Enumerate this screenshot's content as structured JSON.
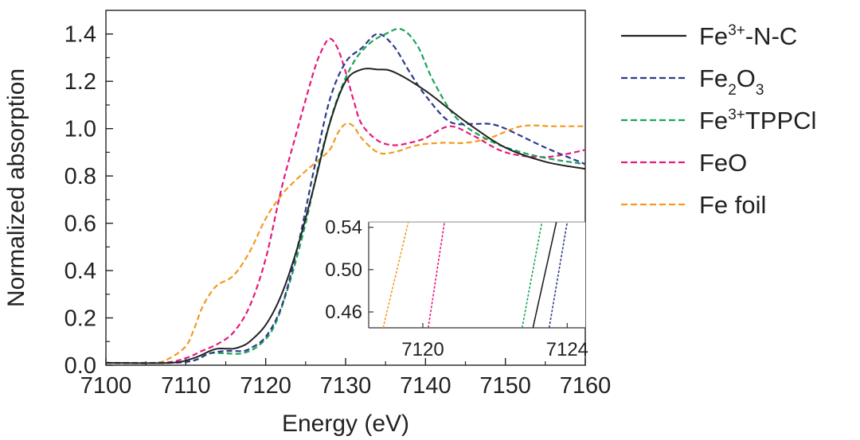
{
  "chart_data": {
    "type": "line",
    "title": "",
    "xlabel": "Energy (eV)",
    "ylabel": "Normalized absorption",
    "xlim": [
      7100,
      7160
    ],
    "ylim": [
      0.0,
      1.5
    ],
    "xticks": [
      7100,
      7110,
      7120,
      7130,
      7140,
      7150,
      7160
    ],
    "xtick_labels": [
      "7100",
      "7110",
      "7120",
      "7130",
      "7140",
      "7150",
      "7160"
    ],
    "yticks": [
      0.0,
      0.2,
      0.4,
      0.6,
      0.8,
      1.0,
      1.2,
      1.4
    ],
    "ytick_labels": [
      "0.0",
      "0.2",
      "0.4",
      "0.6",
      "0.8",
      "1.0",
      "1.2",
      "1.4"
    ],
    "legend_position": "right-outside",
    "series": [
      {
        "name": "Fe3+-N-C",
        "label_parts": [
          "Fe",
          "3+",
          "-N-C"
        ],
        "label_format": "sup",
        "color": "#222222",
        "dash": "solid",
        "x": [
          7100,
          7108,
          7111,
          7113,
          7114,
          7115,
          7116,
          7117,
          7118,
          7120,
          7122,
          7124,
          7126,
          7128,
          7130,
          7132,
          7134,
          7136,
          7140,
          7145,
          7150,
          7155,
          7160
        ],
        "y": [
          0.01,
          0.01,
          0.03,
          0.06,
          0.07,
          0.07,
          0.07,
          0.08,
          0.1,
          0.17,
          0.3,
          0.5,
          0.75,
          1.02,
          1.2,
          1.25,
          1.25,
          1.24,
          1.16,
          1.03,
          0.92,
          0.86,
          0.83
        ]
      },
      {
        "name": "Fe2O3",
        "label_parts": [
          "Fe",
          "2",
          "O",
          "3"
        ],
        "label_format": "sub",
        "color": "#2e3a8c",
        "dash": "dashed",
        "x": [
          7100,
          7108,
          7111,
          7113,
          7115,
          7117,
          7118,
          7120,
          7122,
          7124,
          7126,
          7128,
          7130,
          7132,
          7134,
          7136,
          7138,
          7140,
          7143,
          7146,
          7148,
          7150,
          7155,
          7160
        ],
        "y": [
          0.01,
          0.01,
          0.02,
          0.05,
          0.06,
          0.06,
          0.07,
          0.12,
          0.25,
          0.5,
          0.82,
          1.12,
          1.28,
          1.34,
          1.4,
          1.35,
          1.24,
          1.14,
          1.03,
          1.02,
          1.02,
          1.0,
          0.92,
          0.85
        ]
      },
      {
        "name": "Fe3+TPPCl",
        "label_parts": [
          "Fe",
          "3+",
          "TPPCl"
        ],
        "label_format": "sup",
        "color": "#1aa35a",
        "dash": "dashed",
        "x": [
          7100,
          7108,
          7111,
          7113,
          7115,
          7117,
          7119,
          7121,
          7123,
          7125,
          7127,
          7129,
          7131,
          7133,
          7135,
          7137,
          7139,
          7141,
          7144,
          7148,
          7152,
          7156,
          7160
        ],
        "y": [
          0.01,
          0.01,
          0.02,
          0.05,
          0.05,
          0.05,
          0.08,
          0.16,
          0.35,
          0.6,
          0.9,
          1.13,
          1.28,
          1.36,
          1.4,
          1.42,
          1.35,
          1.2,
          1.04,
          0.95,
          0.9,
          0.87,
          0.85
        ]
      },
      {
        "name": "FeO",
        "label_parts": [
          "FeO"
        ],
        "label_format": "plain",
        "color": "#e6197d",
        "dash": "dashed",
        "x": [
          7100,
          7107,
          7110,
          7112,
          7114,
          7116,
          7118,
          7120,
          7122,
          7124,
          7126,
          7127,
          7128,
          7129,
          7130,
          7131,
          7132,
          7134,
          7136,
          7138,
          7140,
          7143,
          7146,
          7150,
          7155,
          7160
        ],
        "y": [
          0.01,
          0.01,
          0.03,
          0.06,
          0.09,
          0.14,
          0.25,
          0.45,
          0.75,
          1.0,
          1.24,
          1.33,
          1.38,
          1.34,
          1.24,
          1.12,
          1.02,
          0.95,
          0.93,
          0.94,
          0.96,
          1.01,
          0.97,
          0.9,
          0.88,
          0.91
        ]
      },
      {
        "name": "Fe foil",
        "label_parts": [
          "Fe foil"
        ],
        "label_format": "plain",
        "color": "#f29b1f",
        "dash": "dashed",
        "x": [
          7100,
          7106,
          7108,
          7110,
          7111,
          7112,
          7113,
          7114,
          7116,
          7118,
          7120,
          7122,
          7124,
          7126,
          7128,
          7129,
          7130,
          7131,
          7132,
          7134,
          7136,
          7139,
          7142,
          7145,
          7148,
          7152,
          7156,
          7160
        ],
        "y": [
          0.01,
          0.01,
          0.03,
          0.08,
          0.15,
          0.24,
          0.3,
          0.34,
          0.38,
          0.48,
          0.62,
          0.72,
          0.79,
          0.85,
          0.91,
          0.98,
          1.02,
          1.01,
          0.96,
          0.9,
          0.9,
          0.93,
          0.94,
          0.94,
          0.96,
          1.01,
          1.01,
          1.01
        ]
      }
    ],
    "inset": {
      "xlim": [
        7118.5,
        7124.5
      ],
      "ylim": [
        0.445,
        0.545
      ],
      "xticks": [
        7120,
        7124
      ],
      "xtick_labels": [
        "7120",
        "7124"
      ],
      "yticks": [
        0.46,
        0.5,
        0.54
      ],
      "ytick_labels": [
        "0.46",
        "0.50",
        "0.54"
      ],
      "series": [
        {
          "name": "Fe foil",
          "x": [
            7118.9,
            7119.6
          ],
          "y": [
            0.445,
            0.545
          ]
        },
        {
          "name": "FeO",
          "x": [
            7120.15,
            7120.6
          ],
          "y": [
            0.445,
            0.545
          ]
        },
        {
          "name": "Fe3+TPPCl",
          "x": [
            7122.75,
            7123.3
          ],
          "y": [
            0.445,
            0.545
          ]
        },
        {
          "name": "Fe3+-N-C",
          "x": [
            7123.05,
            7123.7
          ],
          "y": [
            0.445,
            0.545
          ]
        },
        {
          "name": "Fe2O3",
          "x": [
            7123.5,
            7124.0
          ],
          "y": [
            0.445,
            0.545
          ]
        }
      ]
    }
  }
}
